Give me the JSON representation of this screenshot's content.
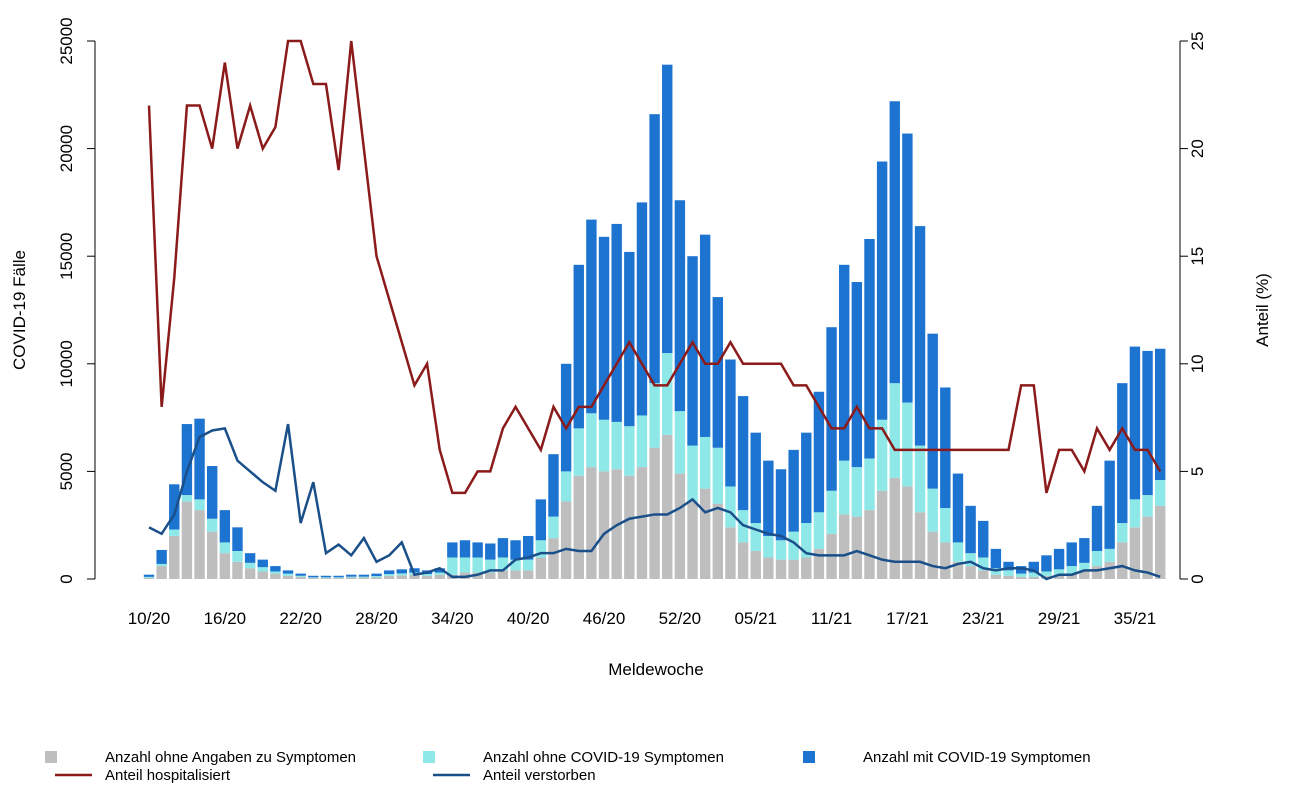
{
  "chart_data": {
    "type": "bar",
    "y_label": "COVID-19 Fälle",
    "y2_label": "Anteil (%)",
    "x_label": "Meldewoche",
    "categories": [
      "10/20",
      null,
      null,
      null,
      null,
      null,
      "16/20",
      null,
      null,
      null,
      null,
      null,
      "22/20",
      null,
      null,
      null,
      null,
      null,
      "28/20",
      null,
      null,
      null,
      null,
      null,
      "34/20",
      null,
      null,
      null,
      null,
      null,
      "40/20",
      null,
      null,
      null,
      null,
      null,
      "46/20",
      null,
      null,
      null,
      null,
      null,
      "52/20",
      null,
      null,
      null,
      null,
      null,
      "05/21",
      null,
      null,
      null,
      null,
      null,
      "11/21",
      null,
      null,
      null,
      null,
      null,
      "17/21",
      null,
      null,
      null,
      null,
      null,
      "23/21",
      null,
      null,
      null,
      null,
      null,
      "29/21",
      null,
      null,
      null,
      null,
      null,
      "35/21",
      null,
      null
    ],
    "series": [
      {
        "name": "Anzahl ohne Angaben zu Symptomen",
        "color": "#bebebe",
        "values": [
          50,
          600,
          2000,
          3600,
          3200,
          2200,
          1200,
          800,
          500,
          350,
          250,
          150,
          100,
          50,
          50,
          50,
          70,
          70,
          90,
          150,
          170,
          200,
          150,
          200,
          200,
          300,
          300,
          300,
          400,
          400,
          400,
          1000,
          1900,
          3600,
          4800,
          5200,
          5000,
          5100,
          4800,
          5200,
          6100,
          6700,
          4900,
          3600,
          4200,
          3500,
          2400,
          1700,
          1300,
          1000,
          900,
          900,
          1000,
          1400,
          2100,
          3000,
          2900,
          3200,
          4100,
          4700,
          4300,
          3100,
          2200,
          1700,
          800,
          600,
          400,
          200,
          150,
          100,
          100,
          150,
          200,
          250,
          350,
          600,
          800,
          1700,
          2400,
          2900,
          3400
        ]
      },
      {
        "name": "Anzahl ohne COVID-19 Symptomen",
        "color": "#8ee8e8",
        "values": [
          50,
          100,
          300,
          300,
          500,
          600,
          500,
          500,
          250,
          200,
          100,
          100,
          50,
          30,
          30,
          30,
          40,
          40,
          50,
          80,
          90,
          100,
          80,
          100,
          800,
          700,
          700,
          600,
          600,
          500,
          500,
          800,
          1000,
          1400,
          2200,
          2500,
          2400,
          2200,
          2300,
          2400,
          3000,
          3800,
          2900,
          2600,
          2400,
          2600,
          1900,
          1500,
          1300,
          1000,
          900,
          1300,
          1600,
          1700,
          2000,
          2500,
          2300,
          2400,
          3300,
          4400,
          3900,
          3100,
          2000,
          1600,
          900,
          600,
          600,
          300,
          250,
          150,
          200,
          200,
          250,
          350,
          400,
          700,
          600,
          900,
          1300,
          1000,
          1200
        ]
      },
      {
        "name": "Anzahl mit COVID-19 Symptomen",
        "color": "#1c74d0",
        "values": [
          100,
          650,
          2100,
          3300,
          3750,
          2450,
          1500,
          1100,
          450,
          350,
          250,
          150,
          100,
          70,
          70,
          70,
          90,
          90,
          110,
          170,
          190,
          200,
          170,
          200,
          700,
          800,
          700,
          750,
          900,
          900,
          1100,
          1900,
          2900,
          5000,
          7600,
          9000,
          8500,
          9200,
          8100,
          9900,
          12500,
          13400,
          9800,
          8800,
          9400,
          7000,
          5900,
          5300,
          4200,
          3500,
          3300,
          3800,
          4200,
          5600,
          7600,
          9100,
          8600,
          10200,
          12000,
          13100,
          12500,
          10200,
          7200,
          5600,
          3200,
          2200,
          1700,
          900,
          400,
          350,
          500,
          750,
          950,
          1100,
          1150,
          2100,
          4100,
          6500,
          7100,
          6700,
          6100
        ]
      },
      {
        "name": "Anteil hospitalisiert",
        "color": "#8b1a1a",
        "axis": "y2",
        "values": [
          22,
          8,
          14,
          22,
          22,
          20,
          24,
          20,
          22,
          20,
          21,
          25,
          25,
          23,
          23,
          19,
          25,
          20,
          15,
          13,
          11,
          9,
          10,
          6,
          4,
          4,
          5,
          5,
          7,
          8,
          7,
          6,
          8,
          7,
          8,
          8,
          9,
          10,
          11,
          10,
          9,
          9,
          10,
          11,
          10,
          10,
          11,
          10,
          10,
          10,
          10,
          9,
          9,
          8,
          7,
          7,
          8,
          7,
          7,
          6,
          6,
          6,
          6,
          6,
          6,
          6,
          6,
          6,
          6,
          9,
          9,
          4,
          6,
          6,
          5,
          7,
          6,
          7,
          6,
          6,
          5
        ]
      },
      {
        "name": "Anteil verstorben",
        "color": "#1a4f8a",
        "axis": "y2",
        "values": [
          2.4,
          2.1,
          3.0,
          5.0,
          6.6,
          6.9,
          7.0,
          5.5,
          5.0,
          4.5,
          4.1,
          7.2,
          2.6,
          4.5,
          1.2,
          1.6,
          1.1,
          1.9,
          0.8,
          1.1,
          1.7,
          0.2,
          0.3,
          0.5,
          0.1,
          0.1,
          0.2,
          0.4,
          0.4,
          0.9,
          1.0,
          1.2,
          1.2,
          1.4,
          1.3,
          1.3,
          2.1,
          2.5,
          2.8,
          2.9,
          3.0,
          3.0,
          3.3,
          3.7,
          3.1,
          3.3,
          3.1,
          2.5,
          2.3,
          2.1,
          2.0,
          1.7,
          1.2,
          1.1,
          1.1,
          1.1,
          1.3,
          1.1,
          0.9,
          0.8,
          0.8,
          0.8,
          0.6,
          0.5,
          0.7,
          0.8,
          0.5,
          0.4,
          0.5,
          0.5,
          0.4,
          0.0,
          0.2,
          0.2,
          0.4,
          0.4,
          0.5,
          0.6,
          0.4,
          0.3,
          0.1
        ]
      }
    ],
    "ylim": [
      0,
      25000
    ],
    "yticks": [
      0,
      5000,
      10000,
      15000,
      20000,
      25000
    ],
    "y2lim": [
      0,
      25
    ],
    "y2ticks": [
      0,
      5,
      10,
      15,
      20,
      25
    ],
    "stacked": true,
    "grid": false,
    "legend": "bottom"
  }
}
